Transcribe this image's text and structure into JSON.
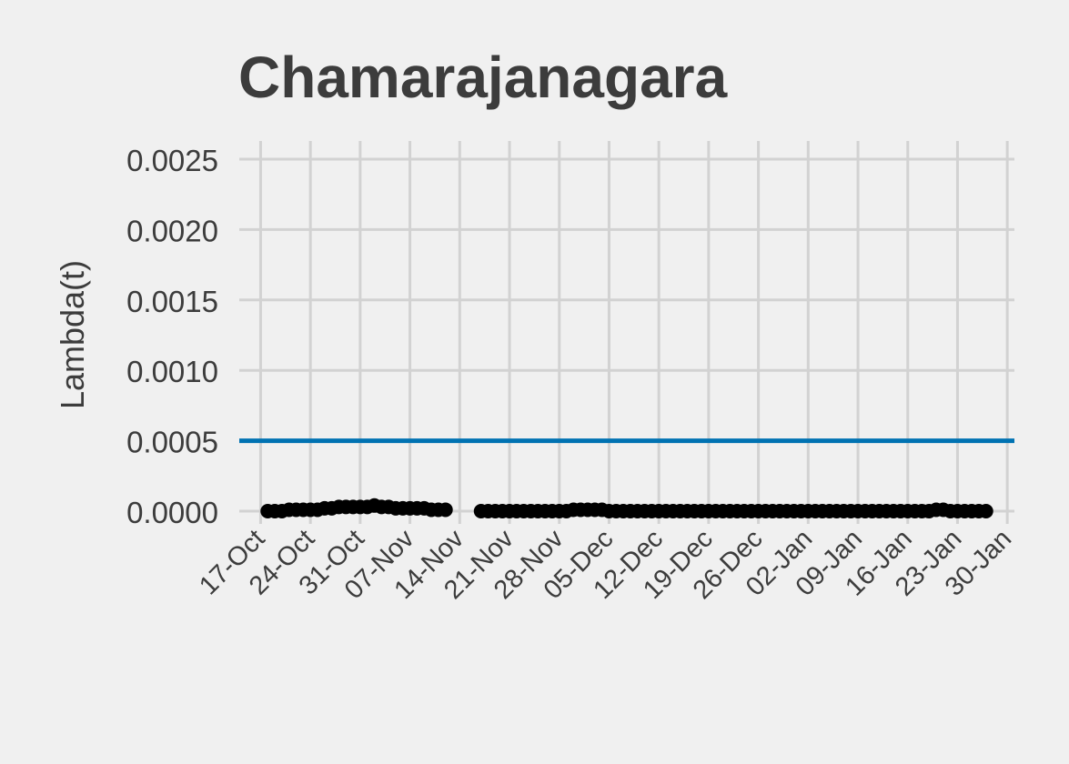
{
  "chart_data": {
    "type": "line",
    "title": "Chamarajanagara",
    "xlabel": "",
    "ylabel": "Lambda(t)",
    "ylim": [
      0,
      0.0025
    ],
    "xlim": [
      "2020-10-14",
      "2021-01-31"
    ],
    "y_ticks": [
      "0.0000",
      "0.0005",
      "0.0010",
      "0.0015",
      "0.0020",
      "0.0025"
    ],
    "x_ticks": [
      {
        "date": "2020-10-17",
        "label": "17-Oct"
      },
      {
        "date": "2020-10-24",
        "label": "24-Oct"
      },
      {
        "date": "2020-10-31",
        "label": "31-Oct"
      },
      {
        "date": "2020-11-07",
        "label": "07-Nov"
      },
      {
        "date": "2020-11-14",
        "label": "14-Nov"
      },
      {
        "date": "2020-11-21",
        "label": "21-Nov"
      },
      {
        "date": "2020-11-28",
        "label": "28-Nov"
      },
      {
        "date": "2020-12-05",
        "label": "05-Dec"
      },
      {
        "date": "2020-12-12",
        "label": "12-Dec"
      },
      {
        "date": "2020-12-19",
        "label": "19-Dec"
      },
      {
        "date": "2020-12-26",
        "label": "26-Dec"
      },
      {
        "date": "2021-01-02",
        "label": "02-Jan"
      },
      {
        "date": "2021-01-09",
        "label": "09-Jan"
      },
      {
        "date": "2021-01-16",
        "label": "16-Jan"
      },
      {
        "date": "2021-01-23",
        "label": "23-Jan"
      },
      {
        "date": "2021-01-30",
        "label": "30-Jan"
      }
    ],
    "grid": true,
    "reference_line": {
      "y": 0.0005,
      "color": "#0072b2"
    },
    "series": [
      {
        "color": "#000000",
        "segments": [
          [
            [
              "2020-10-18",
              0.0
            ],
            [
              "2020-10-19",
              0.0
            ],
            [
              "2020-10-20",
              0.0
            ],
            [
              "2020-10-21",
              1e-05
            ],
            [
              "2020-10-22",
              1e-05
            ],
            [
              "2020-10-23",
              1e-05
            ],
            [
              "2020-10-24",
              1e-05
            ],
            [
              "2020-10-25",
              1e-05
            ],
            [
              "2020-10-26",
              2e-05
            ],
            [
              "2020-10-27",
              2e-05
            ],
            [
              "2020-10-28",
              3e-05
            ],
            [
              "2020-10-29",
              3e-05
            ],
            [
              "2020-10-30",
              3e-05
            ],
            [
              "2020-10-31",
              3e-05
            ],
            [
              "2020-11-01",
              3e-05
            ],
            [
              "2020-11-02",
              4e-05
            ],
            [
              "2020-11-03",
              3e-05
            ],
            [
              "2020-11-04",
              3e-05
            ],
            [
              "2020-11-05",
              2e-05
            ],
            [
              "2020-11-06",
              2e-05
            ],
            [
              "2020-11-07",
              2e-05
            ],
            [
              "2020-11-08",
              2e-05
            ],
            [
              "2020-11-09",
              2e-05
            ],
            [
              "2020-11-10",
              1e-05
            ],
            [
              "2020-11-11",
              1e-05
            ],
            [
              "2020-11-12",
              1e-05
            ]
          ],
          [
            [
              "2020-11-17",
              0.0
            ],
            [
              "2020-11-18",
              0.0
            ],
            [
              "2020-11-19",
              0.0
            ],
            [
              "2020-11-20",
              0.0
            ],
            [
              "2020-11-21",
              0.0
            ],
            [
              "2020-11-22",
              0.0
            ],
            [
              "2020-11-23",
              0.0
            ],
            [
              "2020-11-24",
              0.0
            ],
            [
              "2020-11-25",
              0.0
            ],
            [
              "2020-11-26",
              0.0
            ],
            [
              "2020-11-27",
              0.0
            ],
            [
              "2020-11-28",
              0.0
            ],
            [
              "2020-11-29",
              0.0
            ],
            [
              "2020-11-30",
              1e-05
            ],
            [
              "2020-12-01",
              1e-05
            ],
            [
              "2020-12-02",
              1e-05
            ],
            [
              "2020-12-03",
              1e-05
            ],
            [
              "2020-12-04",
              1e-05
            ],
            [
              "2020-12-05",
              0.0
            ],
            [
              "2020-12-06",
              0.0
            ],
            [
              "2020-12-07",
              0.0
            ],
            [
              "2020-12-08",
              0.0
            ],
            [
              "2020-12-09",
              0.0
            ],
            [
              "2020-12-10",
              0.0
            ],
            [
              "2020-12-11",
              0.0
            ],
            [
              "2020-12-12",
              0.0
            ],
            [
              "2020-12-13",
              0.0
            ],
            [
              "2020-12-14",
              0.0
            ],
            [
              "2020-12-15",
              0.0
            ],
            [
              "2020-12-16",
              0.0
            ],
            [
              "2020-12-17",
              0.0
            ],
            [
              "2020-12-18",
              0.0
            ],
            [
              "2020-12-19",
              0.0
            ],
            [
              "2020-12-20",
              0.0
            ],
            [
              "2020-12-21",
              0.0
            ],
            [
              "2020-12-22",
              0.0
            ],
            [
              "2020-12-23",
              0.0
            ],
            [
              "2020-12-24",
              0.0
            ],
            [
              "2020-12-25",
              0.0
            ],
            [
              "2020-12-26",
              0.0
            ],
            [
              "2020-12-27",
              0.0
            ],
            [
              "2020-12-28",
              0.0
            ],
            [
              "2020-12-29",
              0.0
            ],
            [
              "2020-12-30",
              0.0
            ],
            [
              "2020-12-31",
              0.0
            ],
            [
              "2021-01-01",
              0.0
            ],
            [
              "2021-01-02",
              0.0
            ],
            [
              "2021-01-03",
              0.0
            ],
            [
              "2021-01-04",
              0.0
            ],
            [
              "2021-01-05",
              0.0
            ],
            [
              "2021-01-06",
              0.0
            ],
            [
              "2021-01-07",
              0.0
            ],
            [
              "2021-01-08",
              0.0
            ],
            [
              "2021-01-09",
              0.0
            ],
            [
              "2021-01-10",
              0.0
            ],
            [
              "2021-01-11",
              0.0
            ],
            [
              "2021-01-12",
              0.0
            ],
            [
              "2021-01-13",
              0.0
            ],
            [
              "2021-01-14",
              0.0
            ],
            [
              "2021-01-15",
              0.0
            ],
            [
              "2021-01-16",
              0.0
            ],
            [
              "2021-01-17",
              0.0
            ],
            [
              "2021-01-18",
              0.0
            ],
            [
              "2021-01-19",
              0.0
            ],
            [
              "2021-01-20",
              1e-05
            ],
            [
              "2021-01-21",
              1e-05
            ],
            [
              "2021-01-22",
              0.0
            ],
            [
              "2021-01-23",
              0.0
            ],
            [
              "2021-01-24",
              0.0
            ],
            [
              "2021-01-25",
              0.0
            ],
            [
              "2021-01-26",
              0.0
            ],
            [
              "2021-01-27",
              0.0
            ]
          ]
        ]
      }
    ]
  }
}
